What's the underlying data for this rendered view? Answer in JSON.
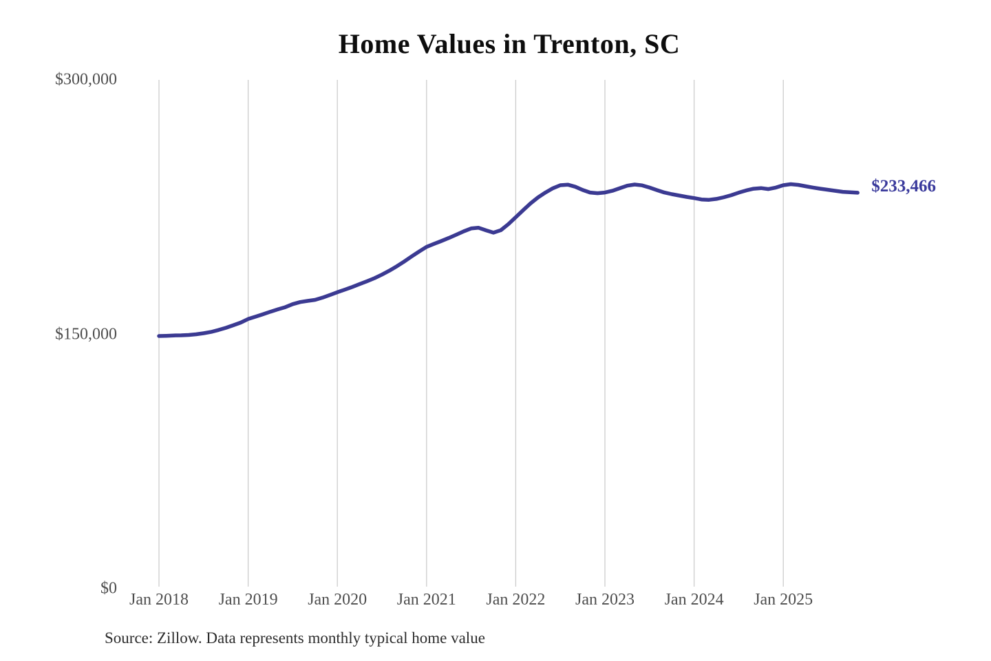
{
  "title": "Home Values in Trenton, SC",
  "source_note": "Source: Zillow. Data represents monthly typical home value",
  "colors": {
    "line": "#3b3a92",
    "end_label": "#3a3a9c",
    "gridline": "#cccccc",
    "axis_text": "#4d4d4d",
    "title_text": "#0d0d0d",
    "source_text": "#2b2b2b",
    "background": "#ffffff"
  },
  "chart_data": {
    "type": "line",
    "title": "Home Values in Trenton, SC",
    "series_name": "Monthly typical home value",
    "x_start": "2018-01",
    "x_interval": "monthly",
    "x_end": "2025-11",
    "x_tick_labels": [
      "Jan 2018",
      "Jan 2019",
      "Jan 2020",
      "Jan 2021",
      "Jan 2022",
      "Jan 2023",
      "Jan 2024",
      "Jan 2025"
    ],
    "y_tick_values": [
      0,
      150000,
      300000
    ],
    "y_tick_labels": [
      "$0",
      "$150,000",
      "$300,000"
    ],
    "ylim": [
      0,
      300000
    ],
    "grid": "vertical-only",
    "legend": "none",
    "final_value": 233466,
    "final_value_label": "$233,466",
    "values": [
      149000,
      149100,
      149300,
      149400,
      149600,
      150000,
      150600,
      151400,
      152500,
      153800,
      155300,
      156900,
      159000,
      160400,
      161800,
      163300,
      164700,
      166000,
      167800,
      169000,
      169700,
      170300,
      171600,
      173200,
      174800,
      176300,
      177900,
      179600,
      181300,
      183100,
      185200,
      187500,
      190100,
      192900,
      195900,
      198800,
      201500,
      203300,
      205000,
      206800,
      208700,
      210700,
      212400,
      212800,
      211300,
      209900,
      211400,
      214900,
      219000,
      223200,
      227200,
      230700,
      233600,
      236100,
      237900,
      238200,
      237000,
      235100,
      233600,
      233200,
      233600,
      234600,
      236100,
      237600,
      238300,
      237800,
      236500,
      235000,
      233600,
      232600,
      231800,
      231000,
      230300,
      229500,
      229300,
      229800,
      230800,
      232000,
      233500,
      234800,
      235800,
      236200,
      235600,
      236500,
      237900,
      238500,
      238100,
      237300,
      236500,
      235800,
      235200,
      234600,
      234000,
      233700,
      233466
    ]
  }
}
